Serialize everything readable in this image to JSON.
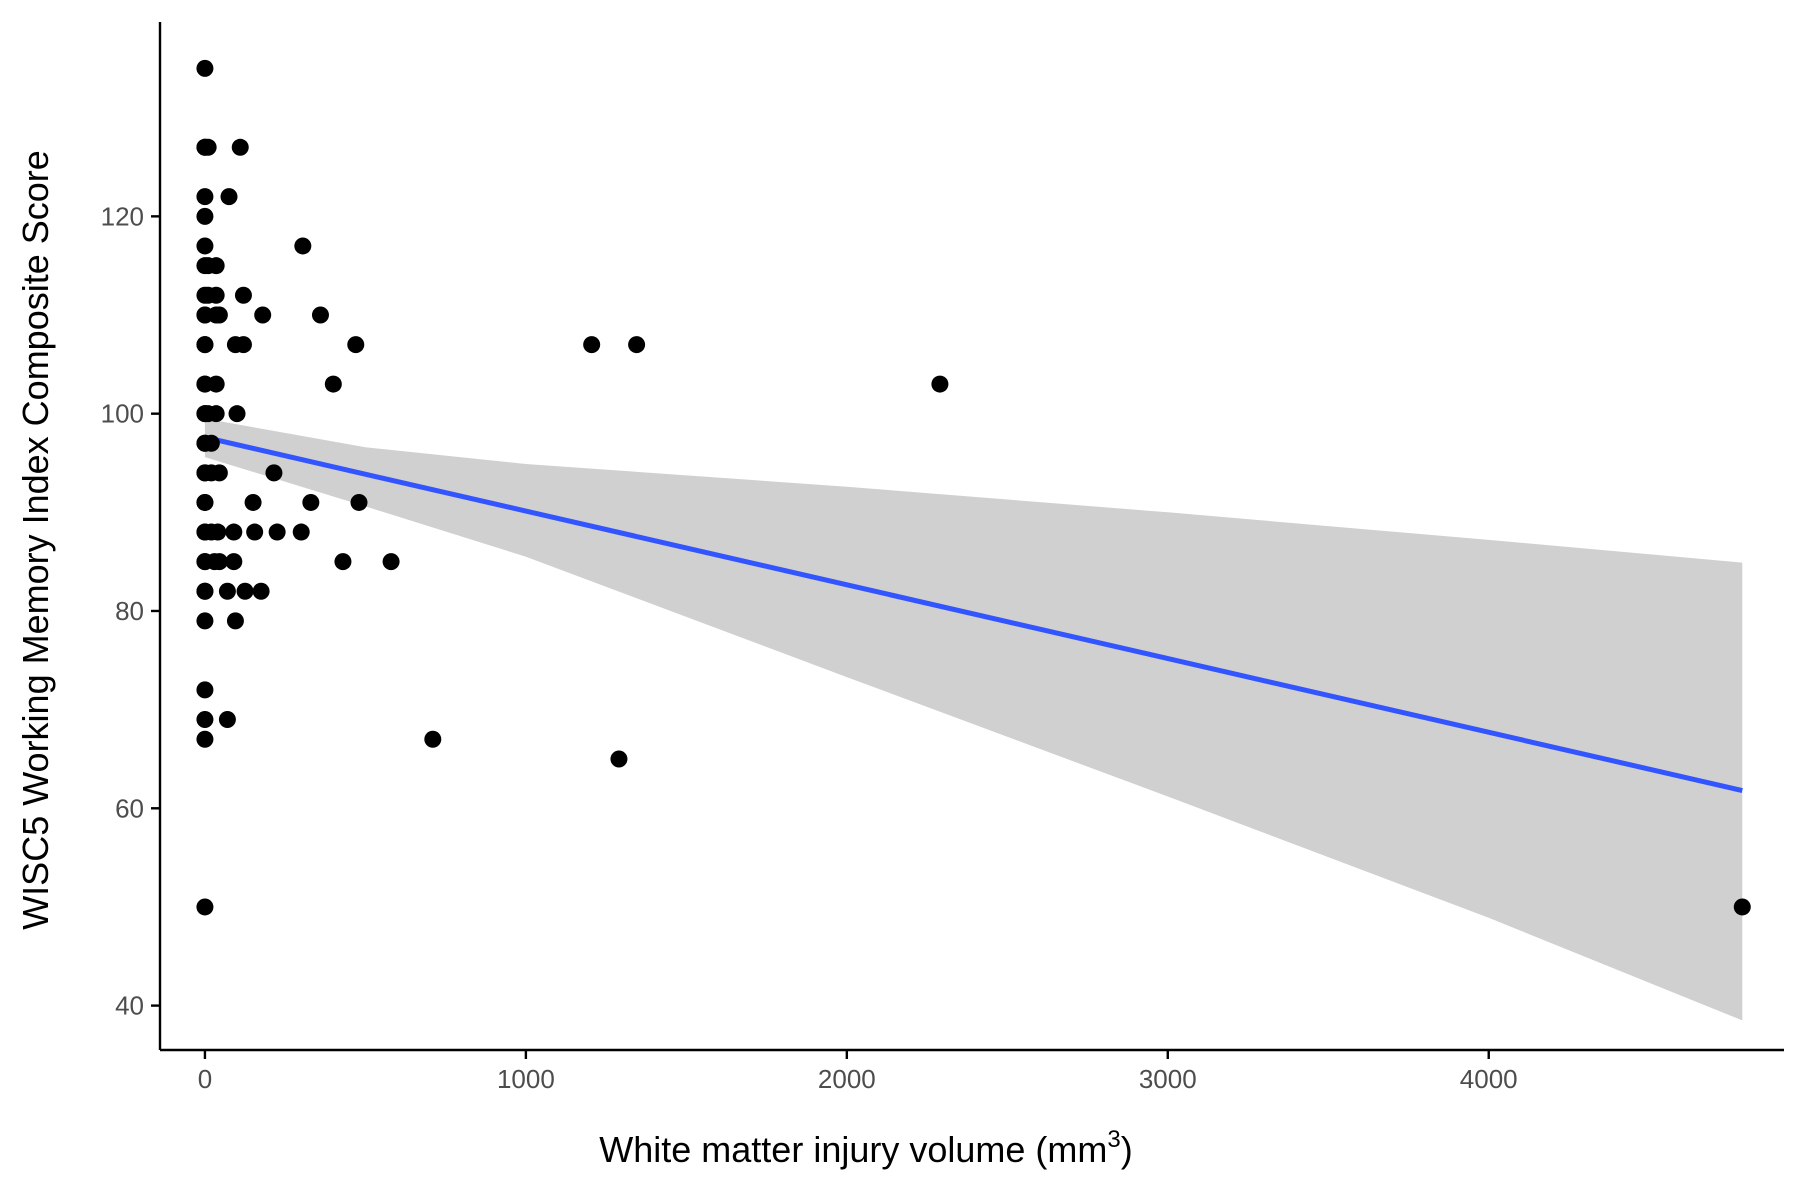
{
  "chart_data": {
    "type": "scatter",
    "title": "",
    "xlabel": "White matter injury volume (mm",
    "xlabel_superscript": "3",
    "xlabel_suffix": ")",
    "ylabel": "WISC5 Working Memory Index Composite Score",
    "xlim": [
      -140,
      4920
    ],
    "ylim": [
      35.5,
      139.7
    ],
    "x_ticks": [
      0,
      1000,
      2000,
      3000,
      4000
    ],
    "y_ticks": [
      40,
      60,
      80,
      100,
      120
    ],
    "x_tick_labels": [
      "0",
      "1000",
      "2000",
      "3000",
      "4000"
    ],
    "y_tick_labels": [
      "40",
      "60",
      "80",
      "100",
      "120"
    ],
    "grid": false,
    "legend": "none",
    "colors": {
      "points": "#000000",
      "fit_line": "#3355ff",
      "confidence_band": "#d0d0d0",
      "axis": "#000000",
      "tick_labels": "#4d4d4d"
    },
    "points": {
      "x": [
        0,
        0,
        10,
        0,
        110,
        0,
        75,
        0,
        305,
        0,
        0,
        10,
        35,
        0,
        10,
        35,
        120,
        0,
        0,
        35,
        45,
        180,
        360,
        0,
        0,
        95,
        120,
        1205,
        1345,
        470,
        0,
        0,
        35,
        400,
        2290,
        0,
        0,
        10,
        35,
        100,
        0,
        0,
        20,
        0,
        0,
        20,
        45,
        215,
        0,
        0,
        150,
        330,
        480,
        0,
        0,
        20,
        40,
        90,
        155,
        225,
        300,
        0,
        0,
        30,
        45,
        90,
        430,
        580,
        0,
        0,
        70,
        125,
        175,
        0,
        95,
        0,
        0,
        70,
        0,
        710,
        1290,
        4790,
        0
      ],
      "y": [
        135,
        127,
        127,
        127,
        127,
        122,
        122,
        120,
        117,
        117,
        115,
        115,
        115,
        112,
        112,
        112,
        112,
        110,
        110,
        110,
        110,
        110,
        110,
        107,
        107,
        107,
        107,
        107,
        107,
        107,
        103,
        103,
        103,
        103,
        103,
        100,
        100,
        100,
        100,
        100,
        97,
        97,
        97,
        94,
        94,
        94,
        94,
        94,
        91,
        91,
        91,
        91,
        91,
        88,
        88,
        88,
        88,
        88,
        88,
        88,
        88,
        85,
        85,
        85,
        85,
        85,
        85,
        85,
        82,
        82,
        82,
        82,
        82,
        79,
        79,
        72,
        69,
        69,
        67,
        67,
        65,
        50,
        50
      ]
    },
    "fit": {
      "x": [
        0,
        4790
      ],
      "y": [
        97.6,
        61.8
      ]
    },
    "confidence_band": {
      "x": [
        0,
        500,
        1000,
        2000,
        3000,
        4000,
        4790
      ],
      "upper": [
        99.5,
        96.6,
        94.9,
        92.6,
        90.0,
        87.2,
        84.9
      ],
      "lower": [
        95.6,
        90.6,
        85.5,
        73.3,
        61.2,
        48.9,
        38.5
      ]
    }
  }
}
